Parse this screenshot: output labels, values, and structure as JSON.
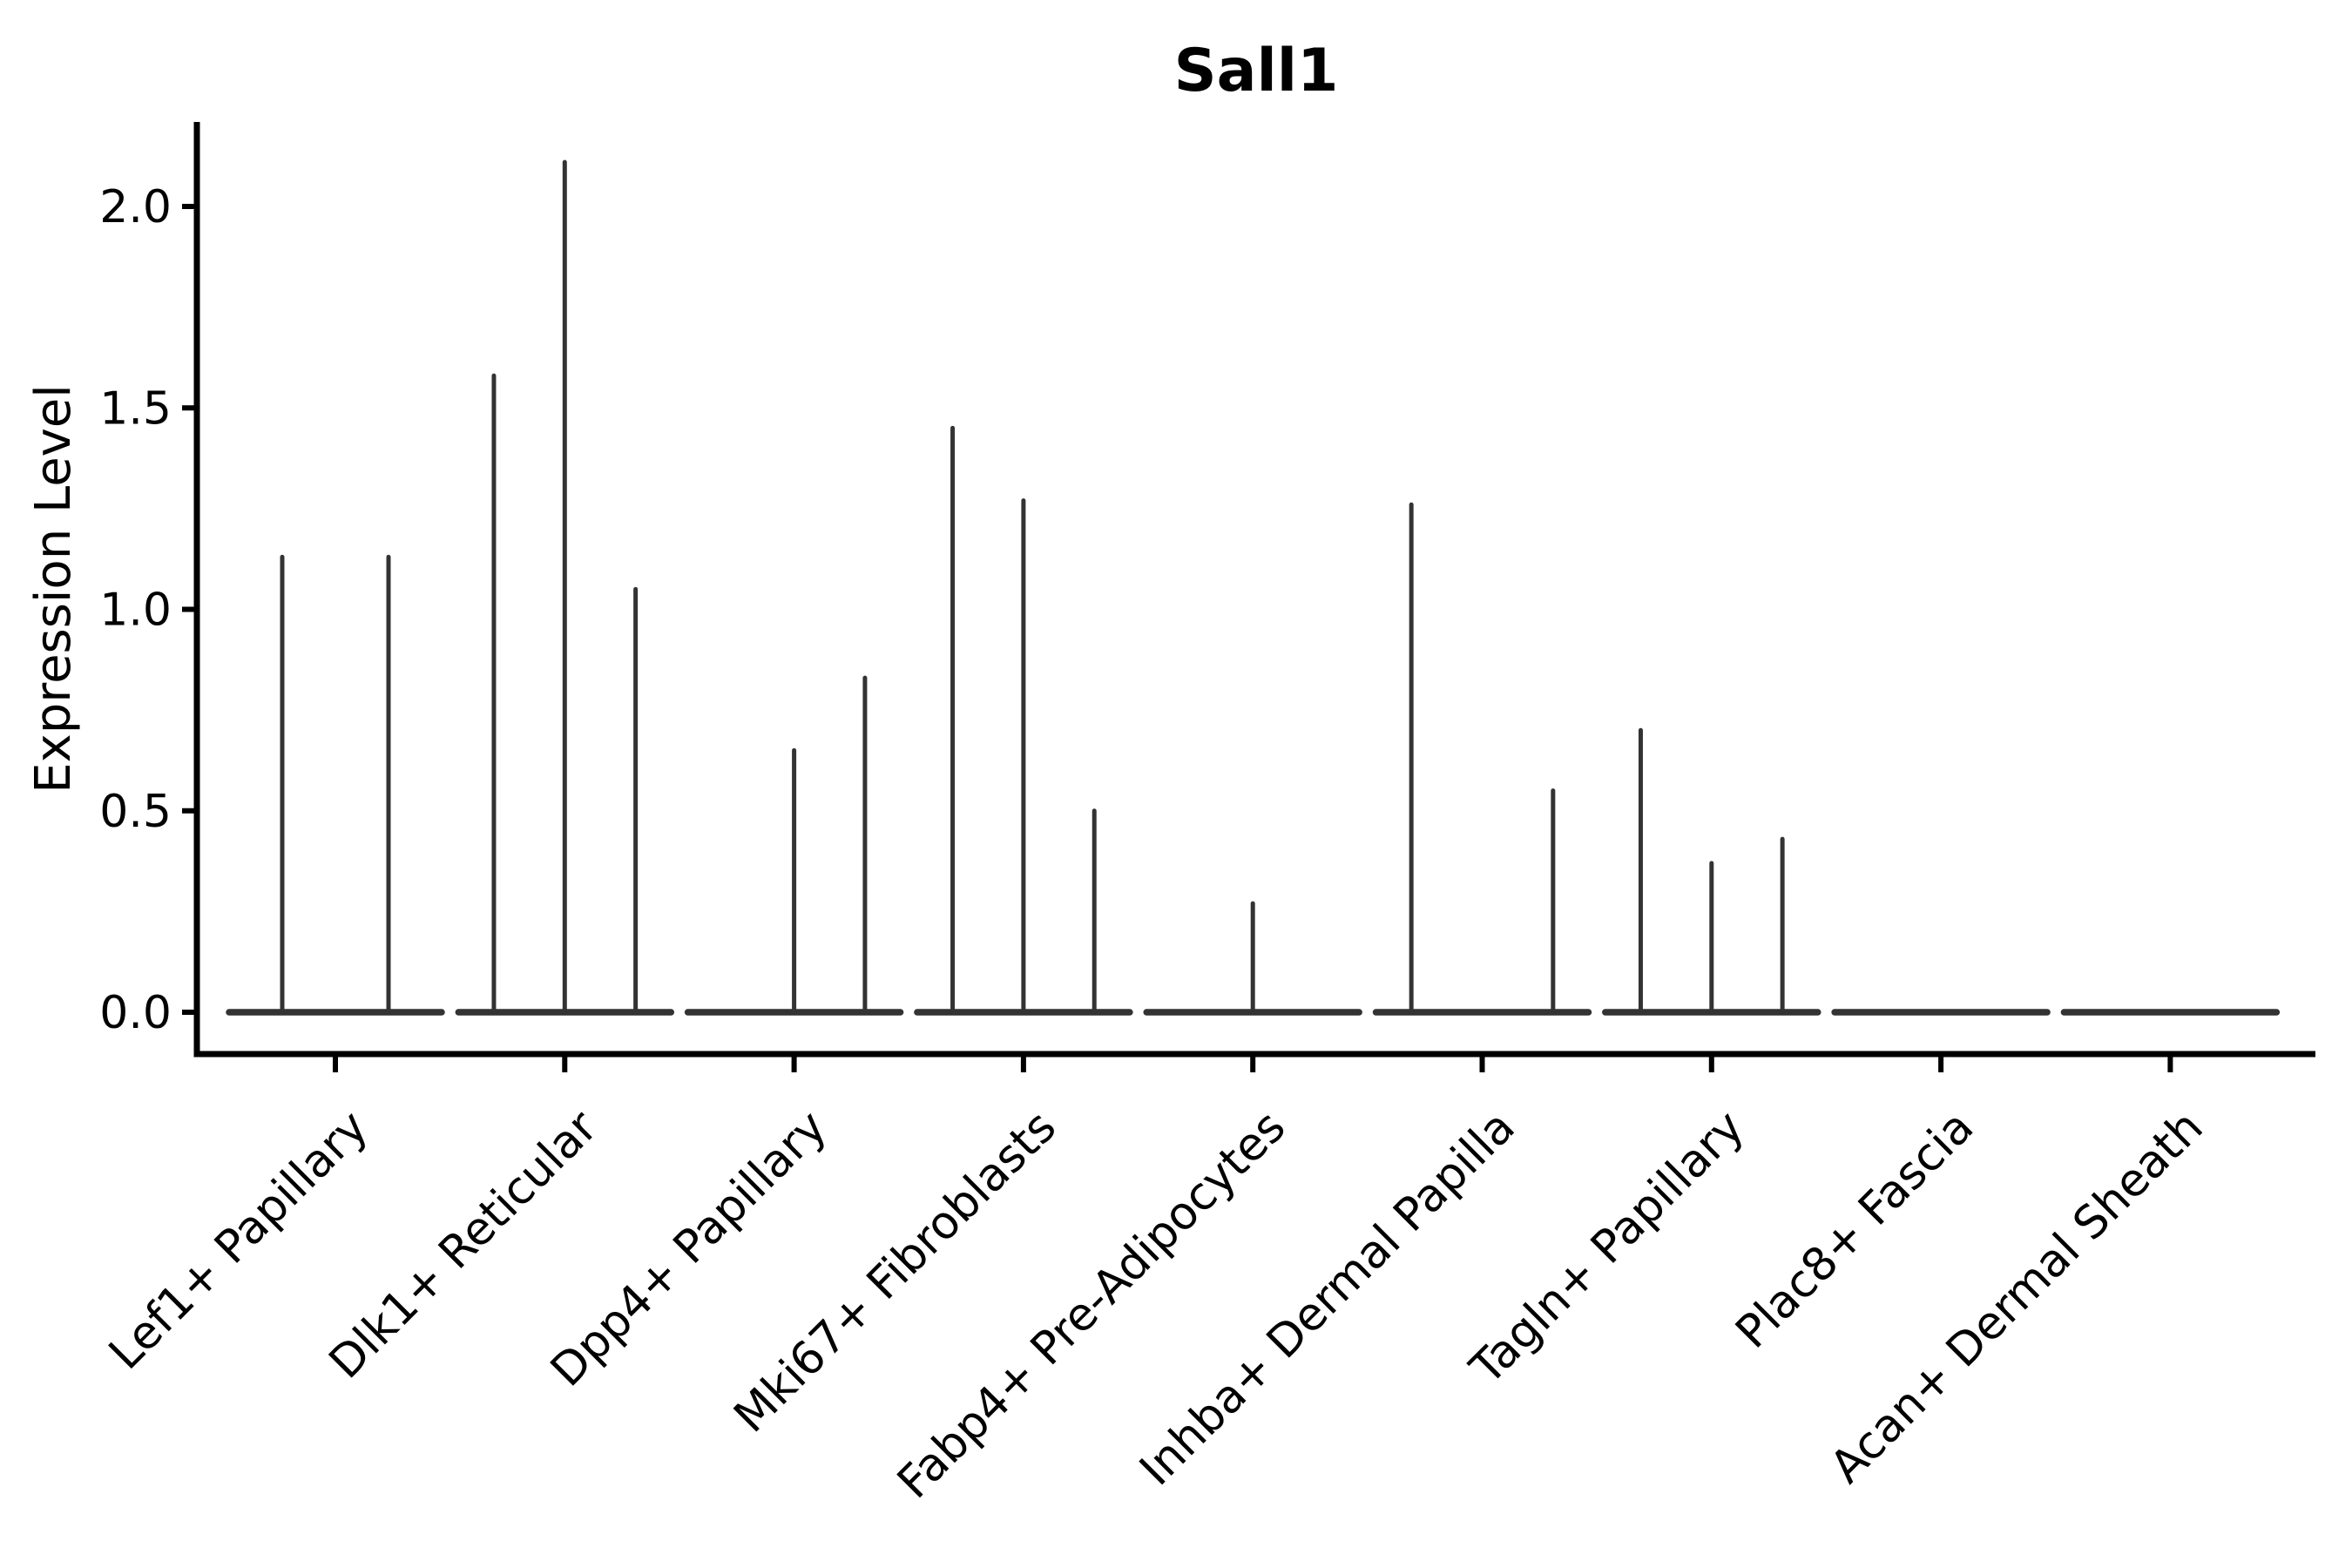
{
  "figure": {
    "title": "Sall1",
    "ylabel": "Expression Level"
  },
  "chart_data": {
    "type": "violin",
    "title": "Sall1",
    "xlabel": "",
    "ylabel": "Expression Level",
    "ytick_labels": [
      "0.0",
      "0.5",
      "1.0",
      "1.5",
      "2.0"
    ],
    "ylim": [
      -0.1,
      2.21
    ],
    "grid": false,
    "legend": null,
    "note": "Gene-expression violin plot; expression is near zero for most cells so each violin collapses to a flat baseline at 0 with a thin vertical density spike reaching the maximum expressed value. Categories contain 1-3 sub-violins; a value of 0 means a flat violin with no spike.",
    "categories": [
      "Lef1+ Papillary",
      "Dlk1+ Reticular",
      "Dpp4+ Papillary",
      "Mki67+ Fibroblasts",
      "Fabp4+ Pre-Adipocytes",
      "Inhba+ Dermal Papilla",
      "Tagln+ Papillary",
      "Plac8+ Fascia",
      "Acan+ Dermal Sheath"
    ],
    "violin_spike_maxima": [
      [
        1.13,
        1.13
      ],
      [
        1.58,
        2.11,
        1.05
      ],
      [
        0,
        0.65,
        0.83
      ],
      [
        1.45,
        1.27,
        0.5
      ],
      [
        0.27
      ],
      [
        1.26,
        0,
        0.55
      ],
      [
        0.7,
        0.37,
        0.43
      ],
      [
        0
      ],
      [
        0
      ]
    ],
    "colors": {
      "violin": "#333333",
      "axis": "#000000",
      "text": "#000000",
      "background": "#ffffff"
    }
  }
}
